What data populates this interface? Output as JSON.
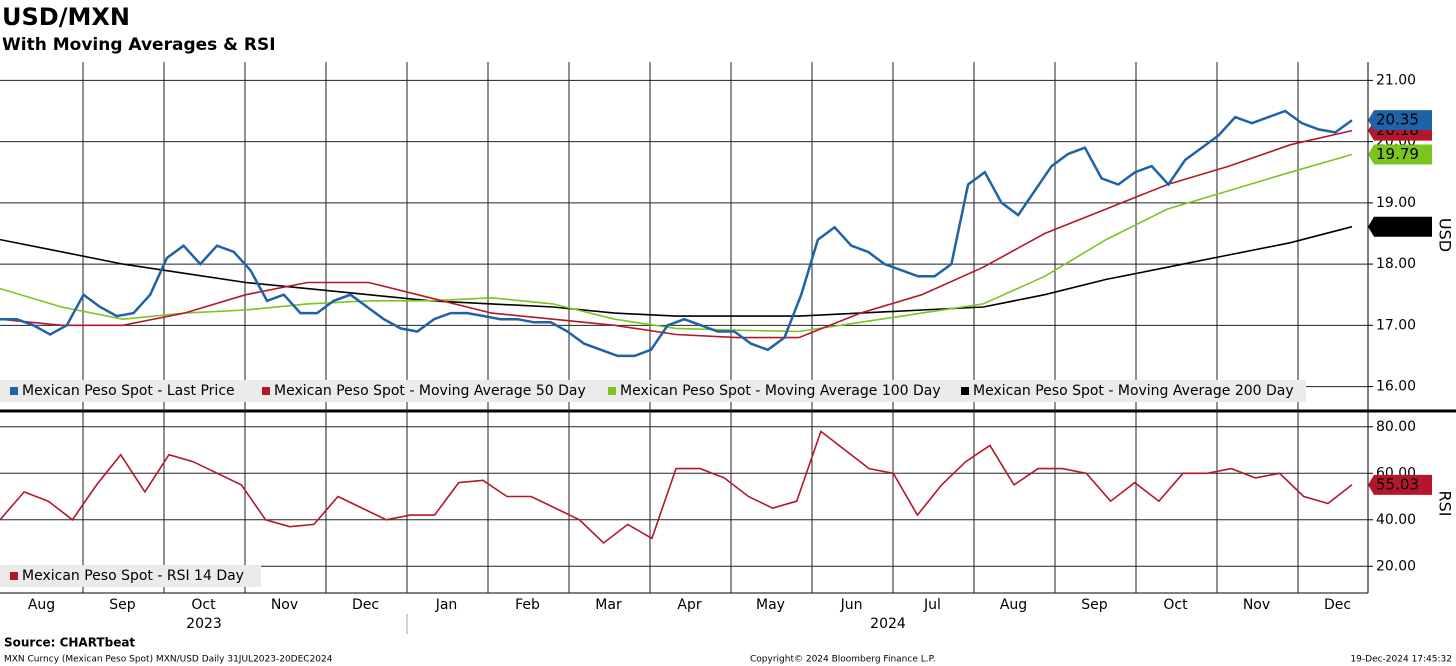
{
  "chart_data": [
    {
      "type": "line",
      "title": "USD/MXN",
      "subtitle": "With Moving Averages & RSI",
      "y_label": "USD",
      "ylim": [
        15.65,
        21.3
      ],
      "yticks": [
        {
          "value": 16,
          "label": "16.00"
        },
        {
          "value": 17,
          "label": "17.00"
        },
        {
          "value": 18,
          "label": "18.00"
        },
        {
          "value": 19,
          "label": "19.00"
        },
        {
          "value": 20,
          "label": "20.00"
        },
        {
          "value": 21,
          "label": "21.00"
        }
      ],
      "grid": true,
      "series": [
        {
          "name": "Mexican Peso Spot - Last Price",
          "color": "#1f62a8",
          "text_color": "#ffffff",
          "values": [
            17.1,
            17.1,
            17.0,
            16.85,
            17.0,
            17.5,
            17.3,
            17.15,
            17.2,
            17.5,
            18.1,
            18.3,
            18.0,
            18.3,
            18.2,
            17.9,
            17.4,
            17.5,
            17.2,
            17.2,
            17.4,
            17.5,
            17.3,
            17.1,
            16.95,
            16.9,
            17.1,
            17.2,
            17.2,
            17.15,
            17.1,
            17.1,
            17.05,
            17.05,
            16.9,
            16.7,
            16.6,
            16.5,
            16.5,
            16.6,
            17.0,
            17.1,
            17.0,
            16.9,
            16.9,
            16.7,
            16.6,
            16.8,
            17.5,
            18.4,
            18.6,
            18.3,
            18.2,
            18.0,
            17.9,
            17.8,
            17.8,
            18.0,
            19.3,
            19.5,
            19.0,
            18.8,
            19.2,
            19.6,
            19.8,
            19.9,
            19.4,
            19.3,
            19.5,
            19.6,
            19.3,
            19.7,
            19.9,
            20.1,
            20.4,
            20.3,
            20.4,
            20.5,
            20.3,
            20.2,
            20.15,
            20.35
          ]
        },
        {
          "name": "Mexican Peso Spot - Moving Average 50 Day",
          "color": "#b5162b",
          "text_color": "#ffffff",
          "values": [
            17.1,
            17.0,
            17.0,
            17.2,
            17.5,
            17.7,
            17.7,
            17.45,
            17.2,
            17.1,
            17.0,
            16.85,
            16.8,
            16.8,
            17.2,
            17.5,
            17.95,
            18.5,
            18.9,
            19.3,
            19.6,
            19.95,
            20.18
          ]
        },
        {
          "name": "Mexican Peso Spot - Moving Average 100 Day",
          "color": "#7cc520",
          "text_color": "#000000",
          "values": [
            17.6,
            17.3,
            17.1,
            17.2,
            17.25,
            17.35,
            17.4,
            17.4,
            17.45,
            17.35,
            17.1,
            16.95,
            16.92,
            16.9,
            17.05,
            17.2,
            17.35,
            17.8,
            18.4,
            18.9,
            19.2,
            19.5,
            19.79
          ]
        },
        {
          "name": "Mexican Peso Spot - Moving Average 200 Day",
          "color": "#000000",
          "text_color": "#ffffff",
          "values": [
            18.4,
            18.2,
            18.0,
            17.85,
            17.7,
            17.6,
            17.5,
            17.4,
            17.35,
            17.3,
            17.2,
            17.15,
            17.15,
            17.15,
            17.2,
            17.25,
            17.3,
            17.5,
            17.75,
            17.95,
            18.15,
            18.35,
            18.61
          ]
        }
      ]
    },
    {
      "type": "line",
      "y_label": "RSI",
      "ylim": [
        8.5,
        85.5
      ],
      "yticks": [
        {
          "value": 20,
          "label": "20.00"
        },
        {
          "value": 40,
          "label": "40.00"
        },
        {
          "value": 60,
          "label": "60.00"
        },
        {
          "value": 80,
          "label": "80.00"
        }
      ],
      "grid": true,
      "series": [
        {
          "name": "Mexican Peso Spot - RSI 14 Day",
          "color": "#b5162b",
          "text_color": "#ffffff",
          "values": [
            40,
            52,
            48,
            40,
            55,
            68,
            52,
            68,
            65,
            60,
            55,
            40,
            37,
            38,
            50,
            45,
            40,
            42,
            42,
            56,
            57,
            50,
            50,
            45,
            40,
            30,
            38,
            32,
            62,
            62,
            58,
            50,
            45,
            48,
            78,
            70,
            62,
            60,
            42,
            55,
            65,
            72,
            55,
            62,
            62,
            60,
            48,
            56,
            48,
            60,
            60,
            62,
            58,
            60,
            50,
            47,
            55.03
          ]
        }
      ]
    }
  ],
  "x_axis": {
    "months": [
      "Aug",
      "Sep",
      "Oct",
      "Nov",
      "Dec",
      "Jan",
      "Feb",
      "Mar",
      "Apr",
      "May",
      "Jun",
      "Jul",
      "Aug",
      "Sep",
      "Oct",
      "Nov",
      "Dec"
    ],
    "years": [
      "2023",
      "2024"
    ]
  },
  "footer": {
    "source": "Source: CHARTbeat",
    "ticker": "MXN Curncy (Mexican Peso Spot) MXN/USD  Daily 31JUL2023-20DEC2024",
    "copyright": "Copyright© 2024 Bloomberg Finance L.P.",
    "timestamp": "19-Dec-2024 17:45:32"
  }
}
